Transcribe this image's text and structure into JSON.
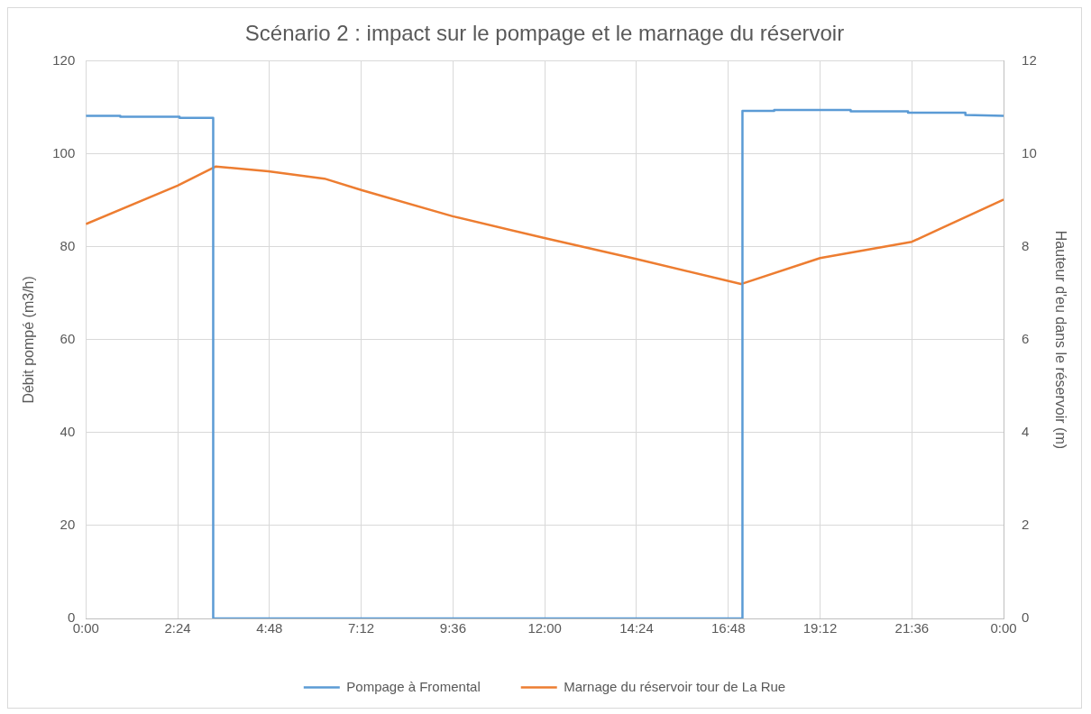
{
  "chart_data": {
    "type": "line",
    "title": "Scénario 2 : impact sur le pompage et le marnage du réservoir",
    "ylabel": "Débit pompé (m3/h)",
    "y2label": "Hauteur d'eu dans le réservoir (m)",
    "xlim": [
      0,
      24
    ],
    "xticks": [
      {
        "value": 0,
        "label": "0:00"
      },
      {
        "value": 2.4,
        "label": "2:24"
      },
      {
        "value": 4.8,
        "label": "4:48"
      },
      {
        "value": 7.2,
        "label": "7:12"
      },
      {
        "value": 9.6,
        "label": "9:36"
      },
      {
        "value": 12,
        "label": "12:00"
      },
      {
        "value": 14.4,
        "label": "14:24"
      },
      {
        "value": 16.8,
        "label": "16:48"
      },
      {
        "value": 19.2,
        "label": "19:12"
      },
      {
        "value": 21.6,
        "label": "21:36"
      },
      {
        "value": 24,
        "label": "0:00"
      }
    ],
    "ylim": [
      0,
      120
    ],
    "yticks": [
      0,
      20,
      40,
      60,
      80,
      100,
      120
    ],
    "y2lim": [
      0,
      12
    ],
    "y2ticks": [
      0,
      2,
      4,
      6,
      8,
      10,
      12
    ],
    "grid": true,
    "legend": "bottom",
    "marker": "none",
    "line_style": "solid",
    "series": [
      {
        "name": "Pompage à Fromental",
        "color": "#5b9bd5",
        "x": [
          0,
          0.9,
          0.9,
          2.45,
          2.45,
          3.33,
          3.33,
          17.17,
          17.17,
          18,
          18,
          20,
          20,
          21.5,
          21.5,
          23,
          23,
          24
        ],
        "values": [
          108.2,
          108.2,
          108,
          108,
          107.8,
          107.8,
          0,
          0,
          109.3,
          109.3,
          109.5,
          109.5,
          109.2,
          109.2,
          108.9,
          108.9,
          108.4,
          108.2
        ]
      },
      {
        "name": "Marnage du réservoir tour de La Rue",
        "color": "#ed7d31",
        "axis": "y2",
        "x": [
          0,
          2.4,
          3.4,
          4.77,
          6.24,
          7.22,
          9.59,
          11.99,
          14.39,
          17.13,
          19.2,
          21.6,
          24
        ],
        "values": [
          8.49,
          9.32,
          9.73,
          9.63,
          9.47,
          9.22,
          8.66,
          8.19,
          7.74,
          7.2,
          7.76,
          8.11,
          9.02
        ]
      }
    ]
  }
}
